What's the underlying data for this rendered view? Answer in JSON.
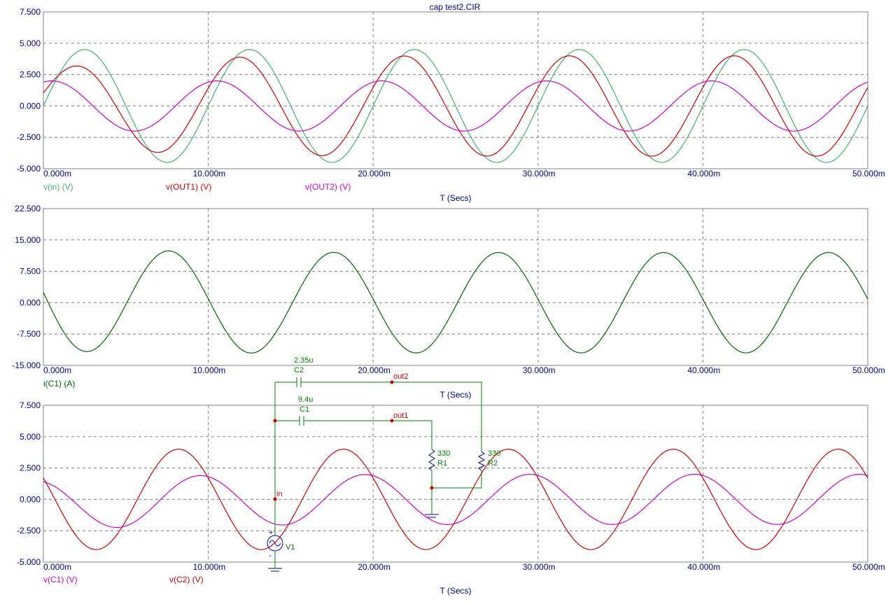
{
  "title": "cap test2.CIR",
  "colors": {
    "background": "#ffffff",
    "axis_text": "#000080",
    "grid": "#808080",
    "frame": "#808080",
    "v_in": "#3cb371",
    "v_out1": "#cc0000",
    "v_out2": "#cc00cc",
    "i_c1": "#006400",
    "schematic_wire": "#008000",
    "schematic_node": "#cc0000",
    "schematic_source": "#0000cc"
  },
  "chart_data": [
    {
      "type": "line",
      "id": "plot1",
      "xlabel": "T (Secs)",
      "xlim": [
        0,
        50
      ],
      "x_unit": "ms",
      "ylim": [
        -5,
        7.5
      ],
      "xticks": [
        "0.000m",
        "10.000m",
        "20.000m",
        "30.000m",
        "40.000m",
        "50.000m"
      ],
      "yticks": [
        "7.500",
        "5.000",
        "2.500",
        "0.000",
        "-2.500",
        "-5.000"
      ],
      "grid": true,
      "series": [
        {
          "name": "v(in) (V)",
          "color_key": "v_in",
          "amplitude": 4.5,
          "period_ms": 10,
          "peak_first_ms": 2.5
        },
        {
          "name": "v(OUT1) (V)",
          "color_key": "v_out1",
          "amplitude": 4.0,
          "period_ms": 10,
          "peak_first_ms": 1.8,
          "first_peak_value": 3.0,
          "first_trough_value": -4.2
        },
        {
          "name": "v(OUT2) (V)",
          "color_key": "v_out2",
          "amplitude": 2.0,
          "period_ms": 10,
          "peak_first_ms": 0.6,
          "first_peak_value": 1.5,
          "first_trough_value": -2.0
        }
      ]
    },
    {
      "type": "line",
      "id": "plot2",
      "xlabel": "T (Secs)",
      "xlim": [
        0,
        50
      ],
      "x_unit": "ms",
      "ylim": [
        -15,
        22.5
      ],
      "xticks": [
        "0.000m",
        "10.000m",
        "20.000m",
        "30.000m",
        "40.000m",
        "50.000m"
      ],
      "yticks": [
        "22.500",
        "15.000",
        "7.500",
        "0.000",
        "-7.500",
        "-15.000"
      ],
      "grid": true,
      "series": [
        {
          "name": "i(C1) (A)",
          "color_key": "i_c1",
          "amplitude": 12.0,
          "period_ms": 10,
          "peak_first_ms": 6.8,
          "first_trough_value": -9.0,
          "first_peak_value": 12.7
        }
      ]
    },
    {
      "type": "line",
      "id": "plot3",
      "xlabel": "T (Secs)",
      "xlim": [
        0,
        50
      ],
      "x_unit": "ms",
      "ylim": [
        -5,
        7.5
      ],
      "xticks": [
        "0.000m",
        "10.000m",
        "20.000m",
        "30.000m",
        "40.000m",
        "50.000m"
      ],
      "yticks": [
        "7.500",
        "5.000",
        "2.500",
        "0.000",
        "-2.500",
        "-5.000"
      ],
      "grid": true,
      "series": [
        {
          "name": "v(C1) (V)",
          "color_key": "v_out2",
          "amplitude": 2.0,
          "period_ms": 10,
          "peak_first_ms": 9.4,
          "first_trough_value": -2.5
        },
        {
          "name": "v(C2) (V)",
          "color_key": "v_out1",
          "amplitude": 4.0,
          "period_ms": 10,
          "peak_first_ms": 8.2
        }
      ]
    }
  ],
  "schematic": {
    "c2_value": "2.35u",
    "c2_name": "C2",
    "c1_value": "9.4u",
    "c1_name": "C1",
    "node_out2": "out2",
    "node_out1": "out1",
    "node_in": "in",
    "r1_value": "330",
    "r1_name": "R1",
    "r2_value": "330",
    "r2_name": "R2",
    "source_name": "V1",
    "source_plus": "+",
    "source_minus": "-"
  }
}
